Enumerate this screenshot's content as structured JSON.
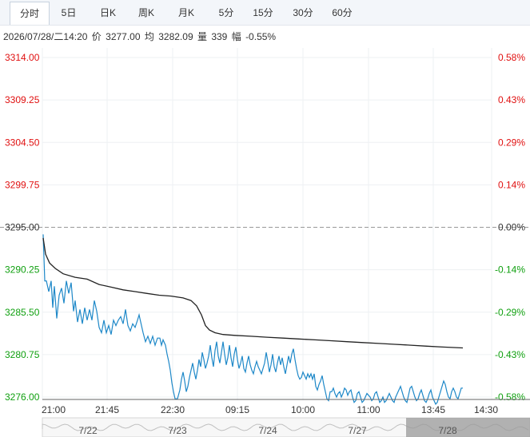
{
  "tabs": [
    "分时",
    "5日",
    "日K",
    "周K",
    "月K",
    "5分",
    "15分",
    "30分",
    "60分"
  ],
  "active_tab": "分时",
  "info": {
    "datetime": "2026/07/28/二14:20",
    "price_label": "价",
    "price": "3277.00",
    "avg_label": "均",
    "avg": "3282.09",
    "vol_label": "量",
    "vol": "339",
    "chg_label": "幅",
    "chg": "-0.55%"
  },
  "colors": {
    "up": "#e01010",
    "down": "#10a010",
    "flat": "#333333",
    "price_line": "#1e88c8",
    "avg_line": "#222222"
  },
  "chart_data": {
    "type": "line",
    "prev_close": 3295.0,
    "ylim": [
      3276.0,
      3314.0
    ],
    "y_ticks": [
      "3314.00",
      "3309.25",
      "3304.50",
      "3299.75",
      "3295.00",
      "3290.25",
      "3285.50",
      "3280.75",
      "3276.00"
    ],
    "pct_ticks": [
      "0.58%",
      "0.43%",
      "0.29%",
      "0.14%",
      "0.00%",
      "-0.14%",
      "-0.29%",
      "-0.43%",
      "-0.58%"
    ],
    "x_ticks": [
      "21:00",
      "21:45",
      "22:30",
      "09:15",
      "10:00",
      "11:00",
      "13:45",
      "14:30"
    ],
    "navigator_dates": [
      "7/22",
      "7/23",
      "7/24",
      "7/27",
      "7/28"
    ],
    "series": [
      {
        "key": "price",
        "points": [
          [
            0,
            3294.2
          ],
          [
            2,
            3289.0
          ],
          [
            4,
            3289.0
          ],
          [
            7,
            3287.8
          ],
          [
            10,
            3289.0
          ],
          [
            12,
            3286.0
          ],
          [
            14,
            3288.4
          ],
          [
            17,
            3284.8
          ],
          [
            20,
            3287.4
          ],
          [
            23,
            3288.2
          ],
          [
            26,
            3286.5
          ],
          [
            29,
            3289.0
          ],
          [
            32,
            3287.6
          ],
          [
            35,
            3288.8
          ],
          [
            38,
            3285.6
          ],
          [
            40,
            3286.8
          ],
          [
            43,
            3284.4
          ],
          [
            46,
            3285.8
          ],
          [
            49,
            3284.2
          ],
          [
            52,
            3286.0
          ],
          [
            55,
            3284.6
          ],
          [
            58,
            3285.8
          ],
          [
            61,
            3284.6
          ],
          [
            64,
            3286.8
          ],
          [
            67,
            3285.6
          ],
          [
            70,
            3283.8
          ],
          [
            73,
            3283.2
          ],
          [
            76,
            3284.6
          ],
          [
            79,
            3283.2
          ],
          [
            82,
            3284.0
          ],
          [
            85,
            3283.0
          ],
          [
            88,
            3284.6
          ],
          [
            91,
            3284.0
          ],
          [
            94,
            3284.6
          ],
          [
            97,
            3285.0
          ],
          [
            100,
            3284.2
          ],
          [
            103,
            3285.8
          ],
          [
            106,
            3284.0
          ],
          [
            109,
            3283.4
          ],
          [
            112,
            3284.2
          ],
          [
            115,
            3283.8
          ],
          [
            118,
            3284.6
          ],
          [
            120,
            3285.2
          ],
          [
            122,
            3284.4
          ],
          [
            125,
            3283.2
          ],
          [
            128,
            3282.2
          ],
          [
            131,
            3282.8
          ],
          [
            134,
            3282.0
          ],
          [
            137,
            3282.8
          ],
          [
            140,
            3281.8
          ],
          [
            143,
            3282.6
          ],
          [
            146,
            3282.6
          ],
          [
            148,
            3281.8
          ],
          [
            150,
            3282.4
          ],
          [
            153,
            3281.8
          ],
          [
            155,
            3280.8
          ],
          [
            157,
            3280.0
          ],
          [
            159,
            3279.0
          ],
          [
            161,
            3277.6
          ],
          [
            163,
            3276.6
          ],
          [
            165,
            3275.8
          ],
          [
            168,
            3275.8
          ],
          [
            171,
            3276.8
          ],
          [
            173,
            3278.0
          ],
          [
            175,
            3278.8
          ],
          [
            177,
            3277.8
          ],
          [
            179,
            3276.6
          ],
          [
            181,
            3277.2
          ],
          [
            183,
            3278.2
          ],
          [
            185,
            3279.0
          ],
          [
            187,
            3279.8
          ],
          [
            189,
            3278.8
          ],
          [
            191,
            3278.0
          ],
          [
            193,
            3279.0
          ],
          [
            195,
            3280.2
          ],
          [
            197,
            3279.4
          ],
          [
            199,
            3281.0
          ],
          [
            201,
            3280.2
          ],
          [
            203,
            3279.2
          ],
          [
            205,
            3279.8
          ],
          [
            207,
            3280.6
          ],
          [
            209,
            3281.8
          ],
          [
            211,
            3280.4
          ],
          [
            213,
            3279.4
          ],
          [
            215,
            3281.2
          ],
          [
            217,
            3282.2
          ],
          [
            219,
            3280.6
          ],
          [
            221,
            3279.8
          ],
          [
            223,
            3281.0
          ],
          [
            225,
            3282.2
          ],
          [
            227,
            3280.8
          ],
          [
            229,
            3279.6
          ],
          [
            231,
            3280.4
          ],
          [
            233,
            3281.8
          ],
          [
            235,
            3280.4
          ],
          [
            237,
            3279.4
          ],
          [
            239,
            3280.8
          ],
          [
            241,
            3281.6
          ],
          [
            243,
            3280.2
          ],
          [
            245,
            3279.2
          ],
          [
            247,
            3279.8
          ],
          [
            249,
            3280.6
          ],
          [
            251,
            3279.2
          ],
          [
            253,
            3278.8
          ],
          [
            255,
            3279.8
          ],
          [
            257,
            3280.6
          ],
          [
            259,
            3279.6
          ],
          [
            261,
            3279.0
          ],
          [
            263,
            3278.6
          ],
          [
            265,
            3279.4
          ],
          [
            267,
            3280.0
          ],
          [
            269,
            3279.4
          ],
          [
            271,
            3279.0
          ],
          [
            273,
            3278.6
          ],
          [
            275,
            3279.2
          ],
          [
            277,
            3279.8
          ],
          [
            279,
            3281.0
          ],
          [
            281,
            3280.0
          ],
          [
            283,
            3278.8
          ],
          [
            285,
            3279.6
          ],
          [
            287,
            3280.8
          ],
          [
            289,
            3279.4
          ],
          [
            291,
            3278.8
          ],
          [
            293,
            3279.8
          ],
          [
            295,
            3280.6
          ],
          [
            297,
            3279.6
          ],
          [
            299,
            3280.4
          ],
          [
            301,
            3279.4
          ],
          [
            303,
            3278.6
          ],
          [
            305,
            3279.6
          ],
          [
            307,
            3280.6
          ],
          [
            309,
            3279.8
          ],
          [
            311,
            3280.8
          ],
          [
            313,
            3281.4
          ],
          [
            315,
            3280.2
          ],
          [
            317,
            3279.2
          ],
          [
            319,
            3278.4
          ],
          [
            321,
            3278.0
          ],
          [
            323,
            3278.2
          ],
          [
            325,
            3278.8
          ],
          [
            327,
            3278.4
          ],
          [
            329,
            3278.0
          ],
          [
            331,
            3278.6
          ],
          [
            333,
            3278.2
          ],
          [
            335,
            3278.6
          ],
          [
            337,
            3278.0
          ],
          [
            339,
            3278.6
          ],
          [
            341,
            3277.2
          ],
          [
            343,
            3276.8
          ],
          [
            345,
            3277.4
          ],
          [
            347,
            3277.8
          ],
          [
            349,
            3278.4
          ],
          [
            351,
            3277.4
          ],
          [
            353,
            3276.6
          ],
          [
            355,
            3275.8
          ],
          [
            357,
            3275.6
          ],
          [
            359,
            3276.6
          ],
          [
            361,
            3276.6
          ],
          [
            363,
            3277.0
          ],
          [
            365,
            3276.4
          ],
          [
            367,
            3276.0
          ],
          [
            369,
            3276.4
          ],
          [
            371,
            3276.6
          ],
          [
            373,
            3276.0
          ],
          [
            375,
            3276.4
          ],
          [
            377,
            3277.0
          ],
          [
            379,
            3276.8
          ],
          [
            381,
            3276.2
          ],
          [
            383,
            3276.6
          ],
          [
            385,
            3276.8
          ],
          [
            387,
            3276.0
          ],
          [
            389,
            3275.4
          ],
          [
            391,
            3275.6
          ],
          [
            393,
            3276.4
          ],
          [
            395,
            3276.6
          ],
          [
            397,
            3276.0
          ],
          [
            399,
            3275.4
          ],
          [
            401,
            3275.6
          ],
          [
            403,
            3276.0
          ],
          [
            405,
            3276.4
          ],
          [
            407,
            3276.2
          ],
          [
            409,
            3276.0
          ],
          [
            411,
            3275.6
          ],
          [
            413,
            3275.8
          ],
          [
            415,
            3276.4
          ],
          [
            417,
            3276.6
          ],
          [
            419,
            3276.0
          ],
          [
            421,
            3275.4
          ],
          [
            423,
            3275.6
          ],
          [
            425,
            3276.0
          ],
          [
            427,
            3275.4
          ],
          [
            429,
            3275.6
          ],
          [
            431,
            3276.0
          ],
          [
            433,
            3276.4
          ],
          [
            435,
            3276.0
          ],
          [
            437,
            3275.6
          ],
          [
            439,
            3275.4
          ],
          [
            441,
            3276.0
          ],
          [
            443,
            3276.4
          ],
          [
            445,
            3276.8
          ],
          [
            447,
            3277.2
          ],
          [
            449,
            3276.6
          ],
          [
            451,
            3276.0
          ],
          [
            453,
            3275.6
          ],
          [
            455,
            3275.4
          ],
          [
            457,
            3276.2
          ],
          [
            459,
            3277.0
          ],
          [
            461,
            3277.2
          ],
          [
            463,
            3276.6
          ],
          [
            465,
            3276.0
          ],
          [
            467,
            3275.6
          ],
          [
            469,
            3275.8
          ],
          [
            471,
            3276.4
          ],
          [
            473,
            3276.8
          ],
          [
            475,
            3276.2
          ],
          [
            477,
            3275.6
          ],
          [
            479,
            3275.4
          ],
          [
            481,
            3275.8
          ],
          [
            483,
            3276.4
          ],
          [
            485,
            3276.8
          ],
          [
            487,
            3276.0
          ],
          [
            489,
            3275.6
          ],
          [
            491,
            3275.2
          ],
          [
            493,
            3275.4
          ],
          [
            495,
            3276.0
          ],
          [
            497,
            3276.6
          ],
          [
            499,
            3277.2
          ],
          [
            501,
            3277.8
          ],
          [
            503,
            3277.4
          ],
          [
            505,
            3276.6
          ],
          [
            507,
            3276.0
          ],
          [
            509,
            3275.8
          ],
          [
            511,
            3276.6
          ],
          [
            513,
            3277.0
          ],
          [
            515,
            3276.6
          ],
          [
            517,
            3276.0
          ],
          [
            519,
            3275.8
          ],
          [
            521,
            3276.4
          ],
          [
            523,
            3277.0
          ],
          [
            525,
            3277.0
          ]
        ]
      },
      {
        "key": "avg",
        "points": [
          [
            0,
            3293.8
          ],
          [
            3,
            3292.0
          ],
          [
            8,
            3291.0
          ],
          [
            15,
            3290.4
          ],
          [
            25,
            3289.8
          ],
          [
            40,
            3289.4
          ],
          [
            55,
            3289.2
          ],
          [
            70,
            3288.6
          ],
          [
            85,
            3288.3
          ],
          [
            100,
            3288.0
          ],
          [
            115,
            3287.8
          ],
          [
            130,
            3287.6
          ],
          [
            145,
            3287.4
          ],
          [
            160,
            3287.3
          ],
          [
            175,
            3287.1
          ],
          [
            185,
            3286.8
          ],
          [
            192,
            3286.2
          ],
          [
            198,
            3285.2
          ],
          [
            203,
            3284.0
          ],
          [
            208,
            3283.5
          ],
          [
            215,
            3283.2
          ],
          [
            225,
            3283.0
          ],
          [
            240,
            3282.9
          ],
          [
            260,
            3282.8
          ],
          [
            280,
            3282.7
          ],
          [
            300,
            3282.6
          ],
          [
            320,
            3282.5
          ],
          [
            340,
            3282.4
          ],
          [
            360,
            3282.3
          ],
          [
            380,
            3282.2
          ],
          [
            400,
            3282.1
          ],
          [
            420,
            3282.0
          ],
          [
            440,
            3281.9
          ],
          [
            460,
            3281.8
          ],
          [
            480,
            3281.7
          ],
          [
            500,
            3281.6
          ],
          [
            525,
            3281.5
          ]
        ]
      }
    ]
  }
}
